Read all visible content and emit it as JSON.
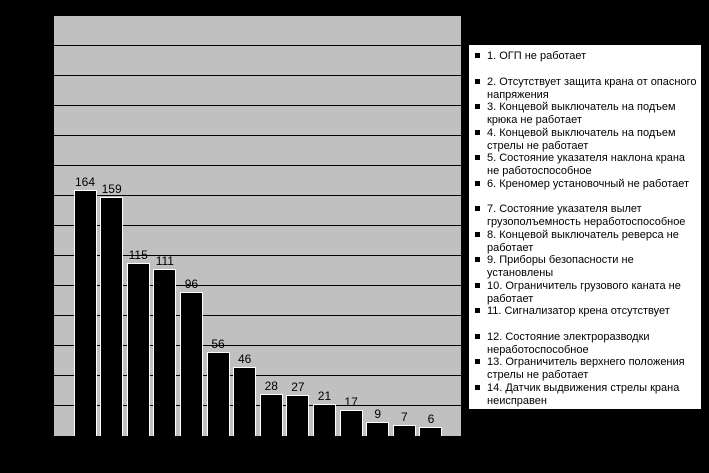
{
  "colors": {
    "page_background": "#000000",
    "plot_background": "#c0c0c0",
    "bar_fill": "#000000",
    "bar_border": "#ffffff",
    "gridline": "#000000",
    "legend_background": "#ffffff",
    "legend_border": "#000000",
    "text": "#000000"
  },
  "chart_data": {
    "type": "bar",
    "title": "",
    "xlabel": "",
    "ylabel": "",
    "categories": [
      "1",
      "2",
      "3",
      "4",
      "5",
      "6",
      "7",
      "8",
      "9",
      "10",
      "11",
      "12",
      "13",
      "14"
    ],
    "values": [
      164,
      159,
      115,
      111,
      96,
      56,
      46,
      28,
      27,
      21,
      17,
      9,
      7,
      6
    ],
    "data_labels": [
      "164",
      "159",
      "115",
      "111",
      "96",
      "56",
      "46",
      "28",
      "27",
      "21",
      "17",
      "9",
      "7",
      "6"
    ],
    "ylim": [
      0,
      280
    ],
    "gridline_step": 20,
    "grid": true,
    "axis_tick_labels_visible": false,
    "legend_position": "right",
    "legend": [
      "1. ОГП не работает",
      "2. Отсутствует защита крана от опасного напряжения",
      "3. Концевой выключатель на подъем крюка не работает",
      "4. Концевой выключатель на подъем стрелы не работает",
      "5. Состояние указателя наклона крана не работоспособное",
      "6. Креномер установочный не работает",
      "7. Состояние указателя вылет грузополъемность неработоспособное",
      "8. Концевой выключатель реверса не работает",
      "9. Приборы безопасности не установлены",
      "10. Ограничитель грузового каната не работает",
      "11. Сигнализатор крена отсутствует",
      "12. Состояние электроразводки неработоспособное",
      "13. Ограничитель верхнего положения стрелы не работает",
      "14. Датчик выдвижения стрелы крана неисправен"
    ]
  }
}
